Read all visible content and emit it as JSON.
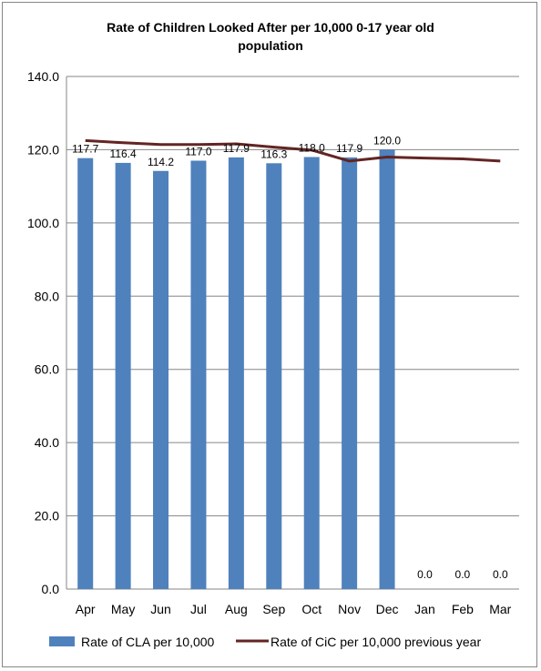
{
  "chart_data": {
    "type": "bar",
    "title_lines": [
      "Rate of Children Looked After per 10,000 0-17 year old",
      "population"
    ],
    "categories": [
      "Apr",
      "May",
      "Jun",
      "Jul",
      "Aug",
      "Sep",
      "Oct",
      "Nov",
      "Dec",
      "Jan",
      "Feb",
      "Mar"
    ],
    "series": [
      {
        "name": "Rate of CLA per 10,000",
        "type": "bar",
        "color": "#4f81bd",
        "values": [
          117.7,
          116.4,
          114.2,
          117.0,
          117.9,
          116.3,
          118.0,
          117.9,
          120.0,
          0.0,
          0.0,
          0.0
        ],
        "data_labels": [
          "117.7",
          "116.4",
          "114.2",
          "117.0",
          "117.9",
          "116.3",
          "118.0",
          "117.9",
          "120.0",
          "0.0",
          "0.0",
          "0.0"
        ]
      },
      {
        "name": "Rate of CiC per 10,000 previous year",
        "type": "line",
        "color": "#632523",
        "values": [
          122.5,
          121.9,
          121.4,
          121.4,
          121.6,
          120.7,
          119.9,
          116.9,
          118.0,
          117.7,
          117.5,
          116.9
        ]
      }
    ],
    "ylim": [
      0,
      140
    ],
    "yticks": [
      "0.0",
      "20.0",
      "40.0",
      "60.0",
      "80.0",
      "100.0",
      "120.0",
      "140.0"
    ],
    "grid": true,
    "legend_position": "bottom"
  }
}
